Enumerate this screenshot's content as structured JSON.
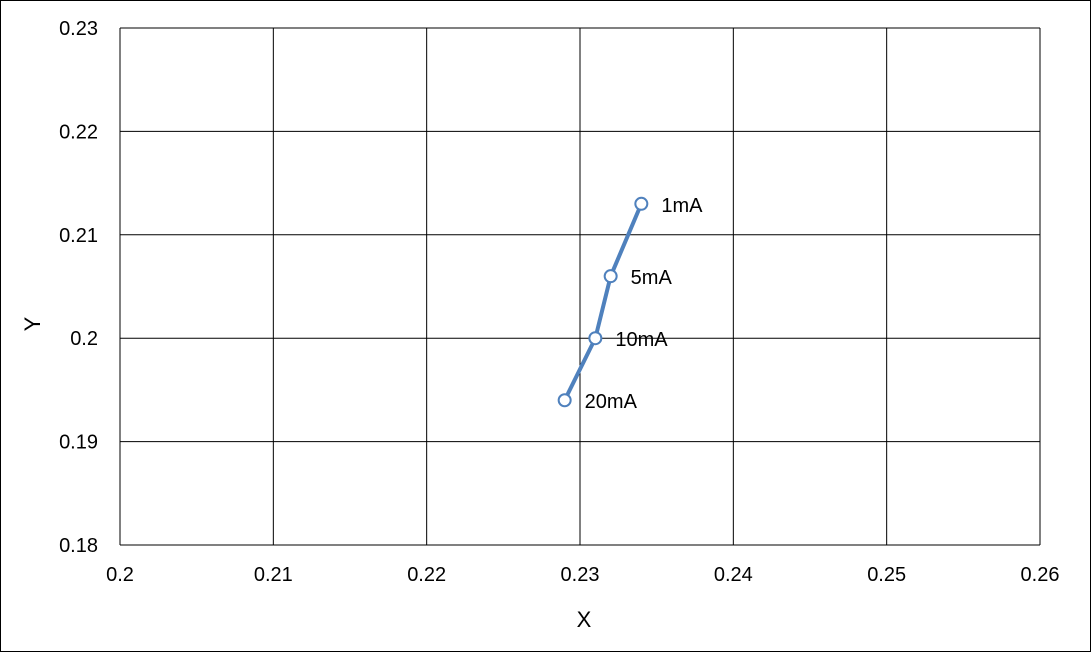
{
  "chart_data": {
    "type": "scatter",
    "title": "",
    "xlabel": "X",
    "ylabel": "Y",
    "xlim": [
      0.2,
      0.26
    ],
    "ylim": [
      0.18,
      0.23
    ],
    "x_ticks": [
      "0.2",
      "0.21",
      "0.22",
      "0.23",
      "0.24",
      "0.25",
      "0.26"
    ],
    "y_ticks": [
      "0.18",
      "0.19",
      "0.2",
      "0.21",
      "0.22",
      "0.23"
    ],
    "grid": true,
    "series": [
      {
        "points": [
          {
            "x": 0.234,
            "y": 0.213,
            "label": "1mA"
          },
          {
            "x": 0.232,
            "y": 0.206,
            "label": "5mA"
          },
          {
            "x": 0.231,
            "y": 0.2,
            "label": "10mA"
          },
          {
            "x": 0.229,
            "y": 0.194,
            "label": "20mA"
          }
        ]
      }
    ],
    "colors": {
      "line": "#4f81bd",
      "marker_fill": "#ffffff",
      "grid": "#000000"
    }
  }
}
